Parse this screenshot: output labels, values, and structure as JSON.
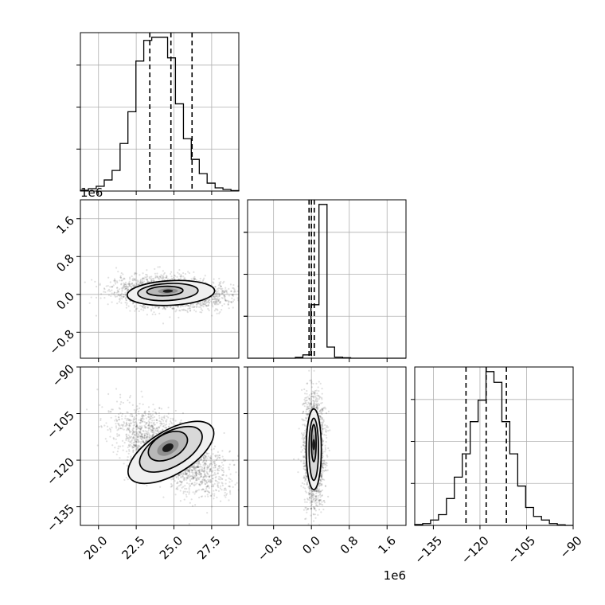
{
  "chart_data": {
    "type": "corner",
    "grid": true,
    "param_offsets": [
      "",
      "1e6",
      ""
    ],
    "params": [
      {
        "range": [
          18.8,
          29.3
        ],
        "ticks": [
          20.0,
          22.5,
          25.0,
          27.5
        ],
        "tick_labels": [
          "20.0",
          "22.5",
          "25.0",
          "27.5"
        ],
        "quantiles": [
          23.4,
          24.8,
          26.2
        ],
        "hist": {
          "bins": [
            18.8,
            19.33,
            19.85,
            20.38,
            20.9,
            21.43,
            21.95,
            22.48,
            23.0,
            23.53,
            24.05,
            24.58,
            25.1,
            25.63,
            26.15,
            26.68,
            27.2,
            27.73,
            28.25,
            28.78,
            29.3
          ],
          "counts": [
            0.5,
            1.5,
            3,
            7,
            13,
            30,
            50,
            82,
            95,
            97,
            97,
            84,
            55,
            33,
            20,
            11,
            5,
            2,
            1,
            0.3
          ]
        }
      },
      {
        "range": [
          -1.35,
          2.0
        ],
        "ticks": [
          -0.8,
          0.0,
          0.8,
          1.6
        ],
        "tick_labels": [
          "−0.8",
          "0.0",
          "0.8",
          "1.6"
        ],
        "quantiles": [
          -0.05,
          0.0,
          0.06
        ],
        "hist": {
          "bins": [
            -1.35,
            -1.18,
            -1.01,
            -0.85,
            -0.68,
            -0.51,
            -0.34,
            -0.18,
            -0.01,
            0.16,
            0.33,
            0.49,
            0.66,
            0.83,
            1.0,
            1.16,
            1.33,
            1.5,
            1.67,
            1.83,
            2.0
          ],
          "counts": [
            0,
            0,
            0,
            0,
            0,
            0,
            0.4,
            1.5,
            24,
            69,
            5,
            0.5,
            0.2,
            0,
            0,
            0,
            0,
            0,
            0,
            0
          ]
        }
      },
      {
        "range": [
          -141,
          -90
        ],
        "ticks": [
          -135,
          -120,
          -105,
          -90
        ],
        "tick_labels": [
          "−135",
          "−120",
          "−105",
          "−90"
        ],
        "quantiles": [
          -124.5,
          -118.0,
          -111.5
        ],
        "hist": {
          "bins": [
            -141,
            -138.45,
            -135.9,
            -133.35,
            -130.8,
            -128.25,
            -125.7,
            -123.15,
            -120.6,
            -118.05,
            -115.5,
            -112.95,
            -110.4,
            -107.85,
            -105.3,
            -102.75,
            -100.2,
            -97.65,
            -95.1,
            -92.55,
            -90
          ],
          "counts": [
            0.5,
            1,
            3,
            6,
            15,
            27,
            40,
            58,
            70,
            86,
            80,
            58,
            40,
            22,
            10,
            5,
            3,
            1,
            0.3,
            0
          ]
        }
      }
    ],
    "pairs": [
      {
        "x_param": 0,
        "y_param": 1,
        "correlation": -0.05,
        "samples": 2500,
        "density_peak": [
          24.6,
          0.07
        ],
        "contours": [
          {
            "center": [
              24.4,
              0.07
            ],
            "rx": 1.2,
            "ry": 0.1,
            "angle": -2
          },
          {
            "center": [
              24.6,
              0.05
            ],
            "rx": 2.0,
            "ry": 0.18,
            "angle": -3
          },
          {
            "center": [
              24.8,
              0.03
            ],
            "rx": 2.9,
            "ry": 0.26,
            "angle": -3
          }
        ]
      },
      {
        "x_param": 0,
        "y_param": 2,
        "correlation": -0.85,
        "samples": 2500,
        "density_peak": [
          24.6,
          -116
        ],
        "contours": [
          {
            "center": [
              24.6,
              -115.5
            ],
            "rx": 1.4,
            "ry": 4.0,
            "angle": -28
          },
          {
            "center": [
              24.8,
              -116.5
            ],
            "rx": 2.3,
            "ry": 5.5,
            "angle": -30
          },
          {
            "center": [
              24.8,
              -117.5
            ],
            "rx": 3.2,
            "ry": 7.0,
            "angle": -31
          }
        ]
      },
      {
        "x_param": 1,
        "y_param": 2,
        "correlation": 0.05,
        "samples": 2500,
        "density_peak": [
          0.05,
          -115
        ],
        "contours": [
          {
            "center": [
              0.05,
              -114.5
            ],
            "rx": 0.05,
            "ry": 6,
            "angle": 0
          },
          {
            "center": [
              0.05,
              -116.5
            ],
            "rx": 0.1,
            "ry": 10,
            "angle": 0
          },
          {
            "center": [
              0.05,
              -116.5
            ],
            "rx": 0.16,
            "ry": 13,
            "angle": 0
          }
        ]
      }
    ]
  }
}
